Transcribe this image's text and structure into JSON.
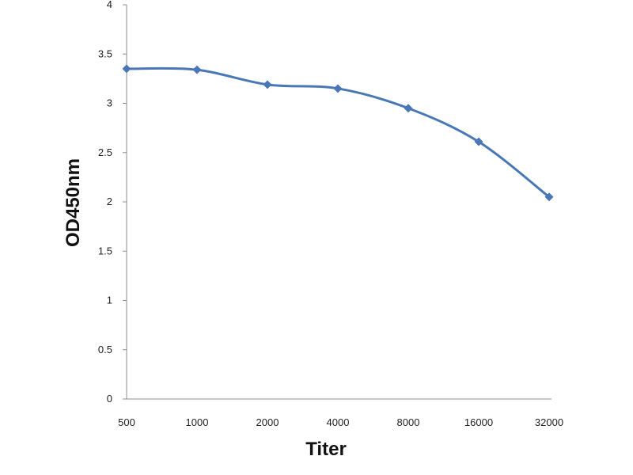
{
  "chart_data": {
    "type": "line",
    "categories": [
      "500",
      "1000",
      "2000",
      "4000",
      "8000",
      "16000",
      "32000"
    ],
    "series": [
      {
        "values": [
          3.35,
          3.34,
          3.19,
          3.15,
          2.95,
          2.61,
          2.05
        ],
        "color": "#4a78b6",
        "marker": "diamond"
      }
    ],
    "xlabel": "Titer",
    "ylabel": "OD450nm",
    "ylim": [
      0,
      4
    ],
    "yticks": [
      "0",
      "0.5",
      "1",
      "1.5",
      "2",
      "2.5",
      "3",
      "3.5",
      "4"
    ],
    "grid": false,
    "smooth": true
  }
}
